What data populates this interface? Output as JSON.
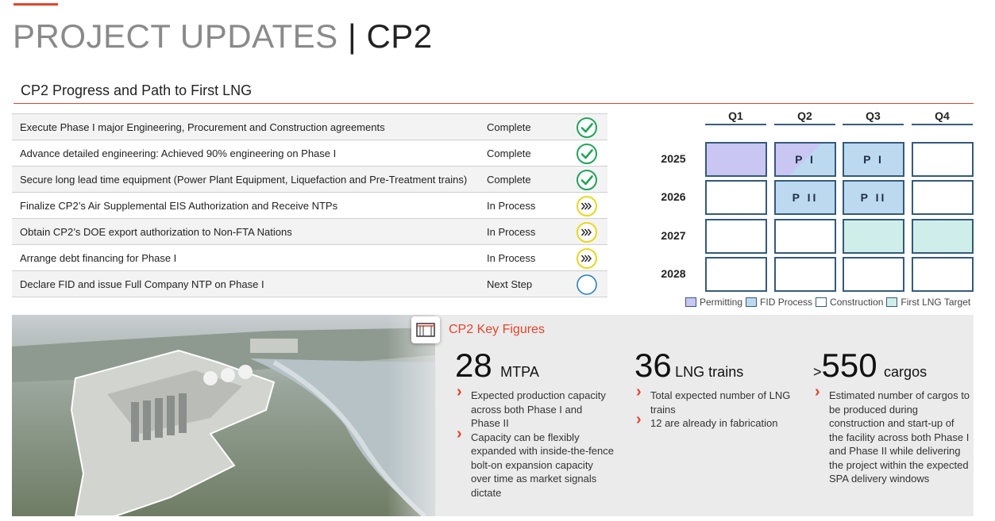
{
  "header": {
    "title_main": "PROJECT UPDATES",
    "title_sep": " | ",
    "title_cp": "CP2"
  },
  "section": {
    "title": "CP2 Progress and Path to First LNG"
  },
  "tasks": [
    {
      "desc": "Execute Phase I major Engineering, Procurement and Construction agreements",
      "status": "Complete",
      "icon": "check-circle-icon"
    },
    {
      "desc": "Advance detailed engineering: Achieved 90% engineering on Phase I",
      "status": "Complete",
      "icon": "check-circle-icon"
    },
    {
      "desc": "Secure long lead time equipment (Power Plant Equipment, Liquefaction and Pre-Treatment trains)",
      "status": "Complete",
      "icon": "check-circle-icon"
    },
    {
      "desc": "Finalize CP2’s Air Supplemental EIS Authorization and Receive NTPs",
      "status": "In Process",
      "icon": "in-process-icon"
    },
    {
      "desc": "Obtain CP2’s DOE export authorization to Non-FTA Nations",
      "status": "In Process",
      "icon": "in-process-icon"
    },
    {
      "desc": "Arrange debt financing for Phase I",
      "status": "In Process",
      "icon": "in-process-icon"
    },
    {
      "desc": "Declare FID and issue Full Company NTP on Phase I",
      "status": "Next Step",
      "icon": "empty-circle-icon"
    }
  ],
  "icons": {
    "complete": "»",
    "in_process": "»»",
    "in_process_glyph": "»»"
  },
  "timeline": {
    "quarters": [
      "Q1",
      "Q2",
      "Q3",
      "Q4"
    ],
    "years": [
      "2025",
      "2026",
      "2027",
      "2028"
    ],
    "cells": {
      "2025": [
        "",
        "P I",
        "P I",
        ""
      ],
      "2026": [
        "",
        "P II",
        "P II",
        ""
      ],
      "2027": [
        "",
        "",
        "",
        ""
      ],
      "2028": [
        "",
        "",
        "",
        ""
      ]
    },
    "legend": [
      "Permitting",
      "FID Process",
      "Construction",
      "First LNG Target"
    ]
  },
  "colors": {
    "accent": "#e2442b",
    "permitting": "#c9c6f3",
    "fid": "#bcd9ef",
    "first_lng": "#cfeeea",
    "complete_green": "#22a35a",
    "in_process_yellow": "#e6d81e",
    "next_step_blue": "#2b7fc1"
  },
  "key_figures": {
    "title": "CP2 Key Figures",
    "figures": [
      {
        "prefix": "",
        "value": "28",
        "unit": "MTPA",
        "bullets": [
          "Expected production capacity across both Phase I and Phase II",
          "Capacity can be flexibly expanded with inside-the-fence bolt-on expansion capacity over time as market signals dictate"
        ]
      },
      {
        "prefix": "",
        "value": "36",
        "unit": "LNG trains",
        "bullets": [
          "Total expected number of LNG trains",
          "12 are already in fabrication"
        ]
      },
      {
        "prefix": ">",
        "value": "550",
        "unit": "cargos",
        "bullets": [
          "Estimated number of cargos to be produced during construction and start-up of the facility across both Phase I and Phase II while delivering the project within the expected SPA delivery windows"
        ]
      }
    ]
  }
}
